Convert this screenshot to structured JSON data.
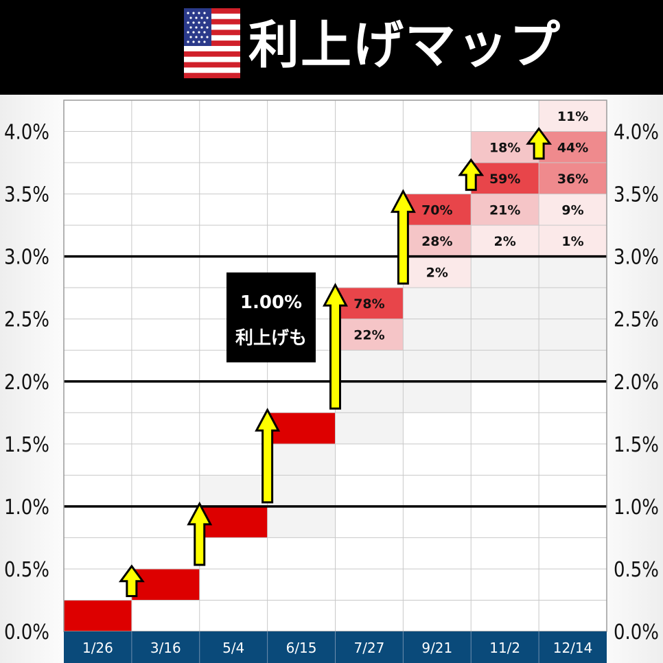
{
  "header": {
    "title": "利上げマップ",
    "flag": "us-flag-icon"
  },
  "annotation": {
    "line1": "1.00%",
    "line2": "利上げも"
  },
  "colors": {
    "header_bg": "#000000",
    "rate_path": "#dd0000",
    "arrow_fill": "#ffff00",
    "date_bar": "#0a4a7a",
    "cell_strong": "#e8454a",
    "cell_medium": "#ef8a8d",
    "cell_light": "#f5c5c7",
    "cell_faint": "#fbe9e9"
  },
  "chart_data": {
    "type": "heatmap",
    "title": "利上げマップ",
    "x": [
      "1/26",
      "3/16",
      "5/4",
      "6/15",
      "7/27",
      "9/21",
      "11/2",
      "12/14"
    ],
    "y_ticks": [
      "0.0%",
      "0.5%",
      "1.0%",
      "1.5%",
      "2.0%",
      "2.5%",
      "3.0%",
      "3.5%",
      "4.0%"
    ],
    "ylim": [
      0,
      4.25
    ],
    "y_bin_width": 0.25,
    "major_lines_at": [
      1.0,
      2.0,
      3.0
    ],
    "rate_path": [
      {
        "meeting": "1/26",
        "lower": 0.0,
        "upper": 0.25
      },
      {
        "meeting": "3/16",
        "lower": 0.25,
        "upper": 0.5
      },
      {
        "meeting": "5/4",
        "lower": 0.75,
        "upper": 1.0
      },
      {
        "meeting": "6/15",
        "lower": 1.5,
        "upper": 1.75
      }
    ],
    "probabilities": [
      {
        "meeting": "7/27",
        "lower": 2.5,
        "value": 78,
        "label": "78%"
      },
      {
        "meeting": "7/27",
        "lower": 2.25,
        "value": 22,
        "label": "22%"
      },
      {
        "meeting": "9/21",
        "lower": 3.25,
        "value": 70,
        "label": "70%"
      },
      {
        "meeting": "9/21",
        "lower": 3.0,
        "value": 28,
        "label": "28%"
      },
      {
        "meeting": "9/21",
        "lower": 2.75,
        "value": 2,
        "label": "2%"
      },
      {
        "meeting": "11/2",
        "lower": 3.75,
        "value": 18,
        "label": "18%"
      },
      {
        "meeting": "11/2",
        "lower": 3.5,
        "value": 59,
        "label": "59%"
      },
      {
        "meeting": "11/2",
        "lower": 3.25,
        "value": 21,
        "label": "21%"
      },
      {
        "meeting": "11/2",
        "lower": 3.0,
        "value": 2,
        "label": "2%"
      },
      {
        "meeting": "12/14",
        "lower": 4.0,
        "value": 11,
        "label": "11%"
      },
      {
        "meeting": "12/14",
        "lower": 3.75,
        "value": 44,
        "label": "44%"
      },
      {
        "meeting": "12/14",
        "lower": 3.5,
        "value": 36,
        "label": "36%"
      },
      {
        "meeting": "12/14",
        "lower": 3.25,
        "value": 9,
        "label": "9%"
      },
      {
        "meeting": "12/14",
        "lower": 3.0,
        "value": 1,
        "label": "1%"
      }
    ],
    "hike_arrows": [
      {
        "meeting": "3/16",
        "from": 0.25,
        "to": 0.5
      },
      {
        "meeting": "5/4",
        "from": 0.5,
        "to": 1.0
      },
      {
        "meeting": "6/15",
        "from": 1.0,
        "to": 1.75
      },
      {
        "meeting": "7/27",
        "from": 1.75,
        "to": 2.75
      },
      {
        "meeting": "9/21",
        "from": 2.75,
        "to": 3.5
      },
      {
        "meeting": "11/2",
        "from": 3.5,
        "to": 3.75
      },
      {
        "meeting": "12/14",
        "from": 3.75,
        "to": 4.0
      }
    ]
  }
}
